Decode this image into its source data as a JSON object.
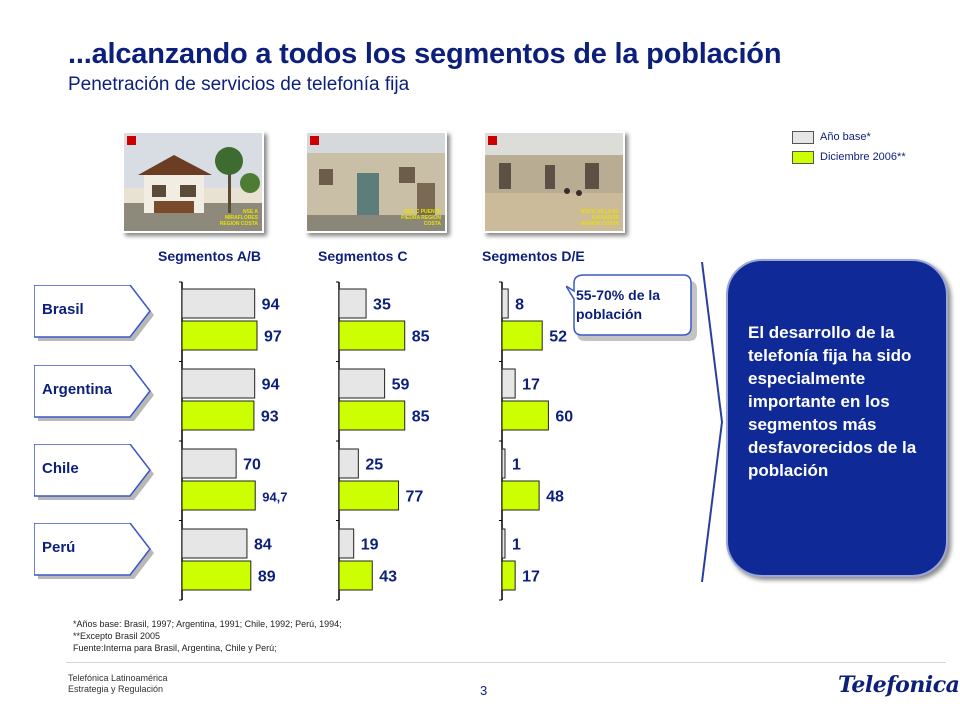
{
  "header": {
    "title": "...alcanzando a todos los segmentos de la población",
    "subtitle": "Penetración de servicios de telefonía fija"
  },
  "legend": {
    "base_label": "Año base*",
    "dec_label": "Diciembre 2006**",
    "base_color": "#e6e6e6",
    "dec_color": "#ccff00"
  },
  "photos": [
    {
      "tag": "NSE A MIRAFLORES REGION COSTA"
    },
    {
      "tag": "NSE C PUENTE PIEDRA REGION COSTA"
    },
    {
      "tag": "NSE E VILLA EL SALVADOR REGION COSTA"
    }
  ],
  "chart_data": {
    "type": "bar",
    "title": "Penetración de servicios de telefonía fija",
    "series": [
      {
        "name": "Año base*",
        "color": "#e6e6e6"
      },
      {
        "name": "Diciembre 2006**",
        "color": "#ccff00"
      }
    ],
    "segments": [
      "Segmentos A/B",
      "Segmentos C",
      "Segmentos D/E"
    ],
    "countries": [
      "Brasil",
      "Argentina",
      "Chile",
      "Perú"
    ],
    "values": {
      "base": [
        [
          94,
          35,
          8
        ],
        [
          94,
          59,
          17
        ],
        [
          70,
          25,
          1
        ],
        [
          84,
          19,
          1
        ]
      ],
      "dec": [
        [
          97,
          85,
          52
        ],
        [
          93,
          85,
          60
        ],
        [
          94.7,
          77,
          48
        ],
        [
          89,
          43,
          17
        ]
      ]
    },
    "labels": {
      "base": [
        [
          "94",
          "35",
          "8"
        ],
        [
          "94",
          "59",
          "17"
        ],
        [
          "70",
          "25",
          "1"
        ],
        [
          "84",
          "19",
          "1"
        ]
      ],
      "dec": [
        [
          "97",
          "85",
          "52"
        ],
        [
          "93",
          "85",
          "60"
        ],
        [
          "94,7",
          "77",
          "48"
        ],
        [
          "89",
          "43",
          "17"
        ]
      ]
    }
  },
  "callout": {
    "text": "55-70% de la población"
  },
  "conclusion": {
    "text": "El desarrollo de la telefonía fija ha sido especialmente importante en los segmentos más desfavorecidos de la población"
  },
  "footnotes": {
    "line1": "*Años base: Brasil, 1997; Argentina, 1991; Chile, 1992; Perú, 1994;",
    "line2": "**Excepto Brasil 2005",
    "line3": "Fuente:Interna para Brasil, Argentina, Chile y Perú;"
  },
  "footer": {
    "company1": "Telefónica Latinoamérica",
    "company2": "Estrategia y Regulación",
    "page": "3",
    "brand": "Telefonica"
  }
}
